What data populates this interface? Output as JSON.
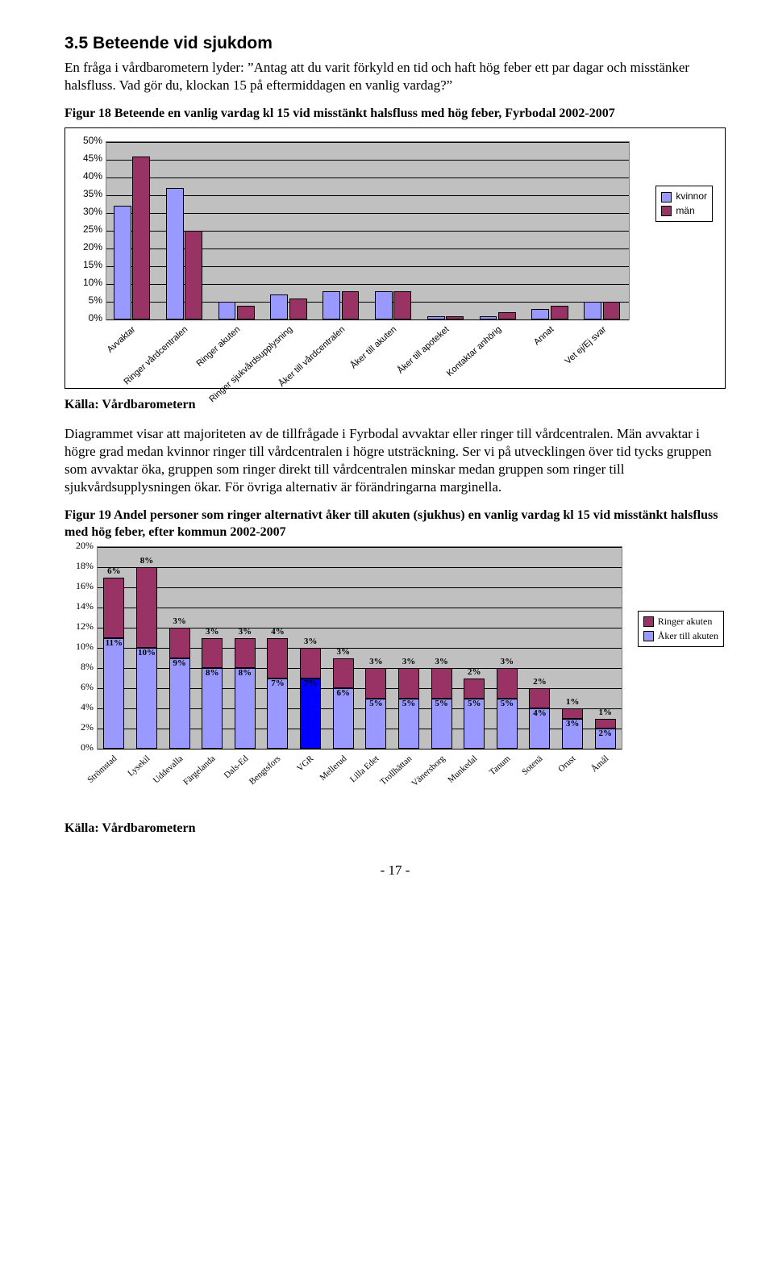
{
  "section_heading": "3.5 Beteende vid sjukdom",
  "intro_para": "En fråga i vårdbarometern lyder: ”Antag att du varit förkyld en tid och haft hög feber ett par dagar och misstänker halsfluss. Vad gör du, klockan 15 på eftermiddagen en vanlig vardag?”",
  "fig18_caption": "Figur 18 Beteende en vanlig vardag kl 15 vid misstänkt halsfluss med hög feber, Fyrbodal 2002-2007",
  "fig18": {
    "ylim": [
      0,
      50
    ],
    "ystep": 5,
    "categories": [
      "Avvaktar",
      "Ringer vårdcentralen",
      "Ringer akuten",
      "Ringer sjukvårdsupplysning",
      "Åker till vårdcentralen",
      "Åker till akuten",
      "Åker till apoteket",
      "Kontaktar anhörig",
      "Annat",
      "Vet ej/Ej svar"
    ],
    "kvinnor": [
      32,
      37,
      5,
      7,
      8,
      8,
      1,
      1,
      3,
      5
    ],
    "man": [
      46,
      25,
      4,
      6,
      8,
      8,
      1,
      2,
      4,
      5
    ],
    "color_kvinnor": "#9999ff",
    "color_man": "#993366",
    "bg": "#c0c0c0",
    "legend": [
      "kvinnor",
      "män"
    ]
  },
  "source_label": "Källa: Vårdbarometern",
  "analysis_para": "Diagrammet visar att majoriteten av de tillfrågade i Fyrbodal avvaktar eller ringer till vårdcentralen. Män avvaktar i högre grad medan kvinnor ringer till vårdcentralen i högre utsträckning. Ser vi på utvecklingen över tid tycks gruppen som avvaktar öka, gruppen som ringer direkt till vårdcentralen minskar medan gruppen som ringer till sjukvårdsupplysningen ökar. För övriga alternativ är förändringarna marginella.",
  "fig19_caption": "Figur 19 Andel personer som ringer alternativt åker till akuten (sjukhus) en vanlig vardag kl 15 vid misstänkt halsfluss med hög feber, efter kommun 2002-2007",
  "fig19": {
    "ylim": [
      0,
      20
    ],
    "ystep": 2,
    "categories": [
      "Strömstad",
      "Lysekil",
      "Uddevalla",
      "Färgelanda",
      "Dals-Ed",
      "Bengtsfors",
      "VGR",
      "Mellerud",
      "Lilla Edet",
      "Trollhättan",
      "Vänersborg",
      "Munkedal",
      "Tanum",
      "Sotenä",
      "Orust",
      "Åmål"
    ],
    "aker": [
      11,
      10,
      9,
      8,
      8,
      7,
      7,
      6,
      5,
      5,
      5,
      5,
      5,
      4,
      3,
      2
    ],
    "ringer": [
      6,
      8,
      3,
      3,
      3,
      4,
      3,
      3,
      3,
      3,
      3,
      2,
      3,
      2,
      1,
      1
    ],
    "color_ringer": "#993366",
    "color_aker": "#9999ff",
    "highlight_index": 6,
    "highlight_color": "#0000ff",
    "bg": "#c0c0c0",
    "legend": [
      "Ringer akuten",
      "Åker till akuten"
    ]
  },
  "page_footer": "- 17 -"
}
